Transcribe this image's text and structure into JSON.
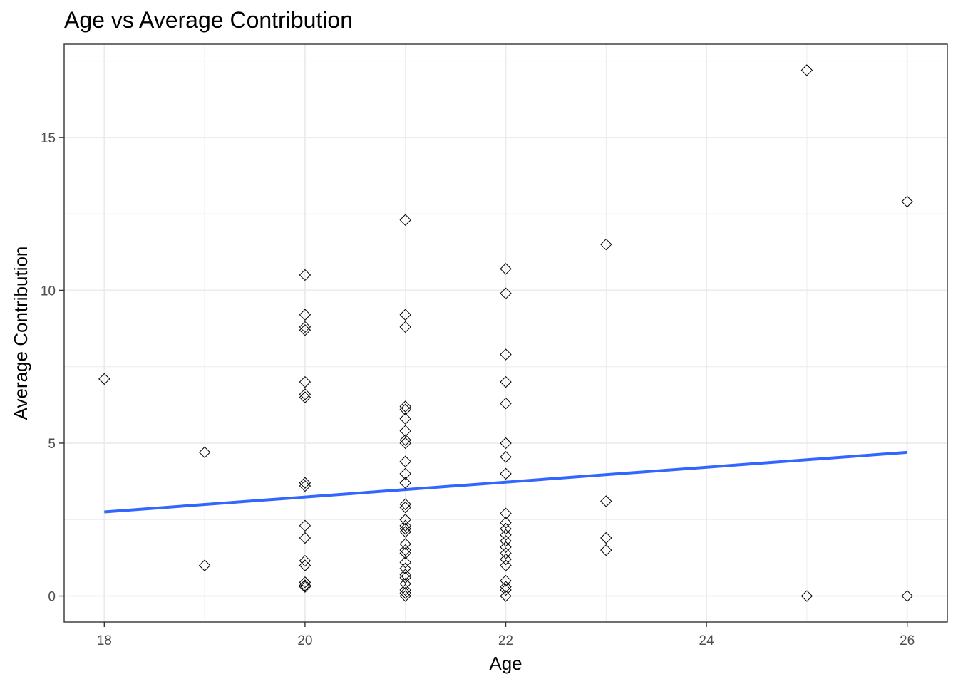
{
  "chart_data": {
    "type": "scatter",
    "title": "Age vs Average Contribution",
    "xlabel": "Age",
    "ylabel": "Average Contribution",
    "xlim": [
      17.6,
      26.4
    ],
    "ylim": [
      -0.85,
      18.05
    ],
    "x_ticks": [
      18,
      20,
      22,
      24,
      26
    ],
    "y_ticks": [
      0,
      5,
      10,
      15
    ],
    "x_minor": [
      19,
      21,
      23,
      25
    ],
    "y_minor": [
      2.5,
      7.5,
      12.5,
      17.5
    ],
    "grid": true,
    "legend": "none",
    "marker": "open-diamond",
    "colors": {
      "points": "#000000",
      "trend": "#3366ff",
      "grid": "#ebebeb",
      "panel_border": "#333333"
    },
    "points": [
      {
        "x": 18,
        "y": 7.1
      },
      {
        "x": 19,
        "y": 4.7
      },
      {
        "x": 19,
        "y": 1.0
      },
      {
        "x": 20,
        "y": 10.5
      },
      {
        "x": 20,
        "y": 9.2
      },
      {
        "x": 20,
        "y": 8.8
      },
      {
        "x": 20,
        "y": 8.7
      },
      {
        "x": 20,
        "y": 7.0
      },
      {
        "x": 20,
        "y": 6.6
      },
      {
        "x": 20,
        "y": 6.5
      },
      {
        "x": 20,
        "y": 3.7
      },
      {
        "x": 20,
        "y": 3.6
      },
      {
        "x": 20,
        "y": 2.3
      },
      {
        "x": 20,
        "y": 1.9
      },
      {
        "x": 20,
        "y": 1.15
      },
      {
        "x": 20,
        "y": 1.0
      },
      {
        "x": 20,
        "y": 0.45
      },
      {
        "x": 20,
        "y": 0.35
      },
      {
        "x": 20,
        "y": 0.3
      },
      {
        "x": 21,
        "y": 12.3
      },
      {
        "x": 21,
        "y": 9.2
      },
      {
        "x": 21,
        "y": 8.8
      },
      {
        "x": 21,
        "y": 6.2
      },
      {
        "x": 21,
        "y": 6.1
      },
      {
        "x": 21,
        "y": 5.8
      },
      {
        "x": 21,
        "y": 5.4
      },
      {
        "x": 21,
        "y": 5.1
      },
      {
        "x": 21,
        "y": 5.0
      },
      {
        "x": 21,
        "y": 4.4
      },
      {
        "x": 21,
        "y": 4.0
      },
      {
        "x": 21,
        "y": 3.7
      },
      {
        "x": 21,
        "y": 3.0
      },
      {
        "x": 21,
        "y": 2.9
      },
      {
        "x": 21,
        "y": 2.5
      },
      {
        "x": 21,
        "y": 2.3
      },
      {
        "x": 21,
        "y": 2.2
      },
      {
        "x": 21,
        "y": 2.1
      },
      {
        "x": 21,
        "y": 1.7
      },
      {
        "x": 21,
        "y": 1.5
      },
      {
        "x": 21,
        "y": 1.4
      },
      {
        "x": 21,
        "y": 1.1
      },
      {
        "x": 21,
        "y": 0.9
      },
      {
        "x": 21,
        "y": 0.7
      },
      {
        "x": 21,
        "y": 0.6
      },
      {
        "x": 21,
        "y": 0.4
      },
      {
        "x": 21,
        "y": 0.2
      },
      {
        "x": 21,
        "y": 0.1
      },
      {
        "x": 21,
        "y": 0.0
      },
      {
        "x": 22,
        "y": 10.7
      },
      {
        "x": 22,
        "y": 9.9
      },
      {
        "x": 22,
        "y": 7.9
      },
      {
        "x": 22,
        "y": 7.0
      },
      {
        "x": 22,
        "y": 6.3
      },
      {
        "x": 22,
        "y": 5.0
      },
      {
        "x": 22,
        "y": 4.55
      },
      {
        "x": 22,
        "y": 4.0
      },
      {
        "x": 22,
        "y": 2.7
      },
      {
        "x": 22,
        "y": 2.4
      },
      {
        "x": 22,
        "y": 2.2
      },
      {
        "x": 22,
        "y": 2.0
      },
      {
        "x": 22,
        "y": 1.8
      },
      {
        "x": 22,
        "y": 1.6
      },
      {
        "x": 22,
        "y": 1.4
      },
      {
        "x": 22,
        "y": 1.2
      },
      {
        "x": 22,
        "y": 1.0
      },
      {
        "x": 22,
        "y": 0.5
      },
      {
        "x": 22,
        "y": 0.3
      },
      {
        "x": 22,
        "y": 0.2
      },
      {
        "x": 22,
        "y": 0.0
      },
      {
        "x": 23,
        "y": 11.5
      },
      {
        "x": 23,
        "y": 3.1
      },
      {
        "x": 23,
        "y": 1.9
      },
      {
        "x": 23,
        "y": 1.5
      },
      {
        "x": 25,
        "y": 17.2
      },
      {
        "x": 25,
        "y": 0.0
      },
      {
        "x": 26,
        "y": 12.9
      },
      {
        "x": 26,
        "y": 0.0
      }
    ],
    "trend": {
      "x": [
        18,
        26
      ],
      "y": [
        2.75,
        4.7
      ]
    }
  }
}
